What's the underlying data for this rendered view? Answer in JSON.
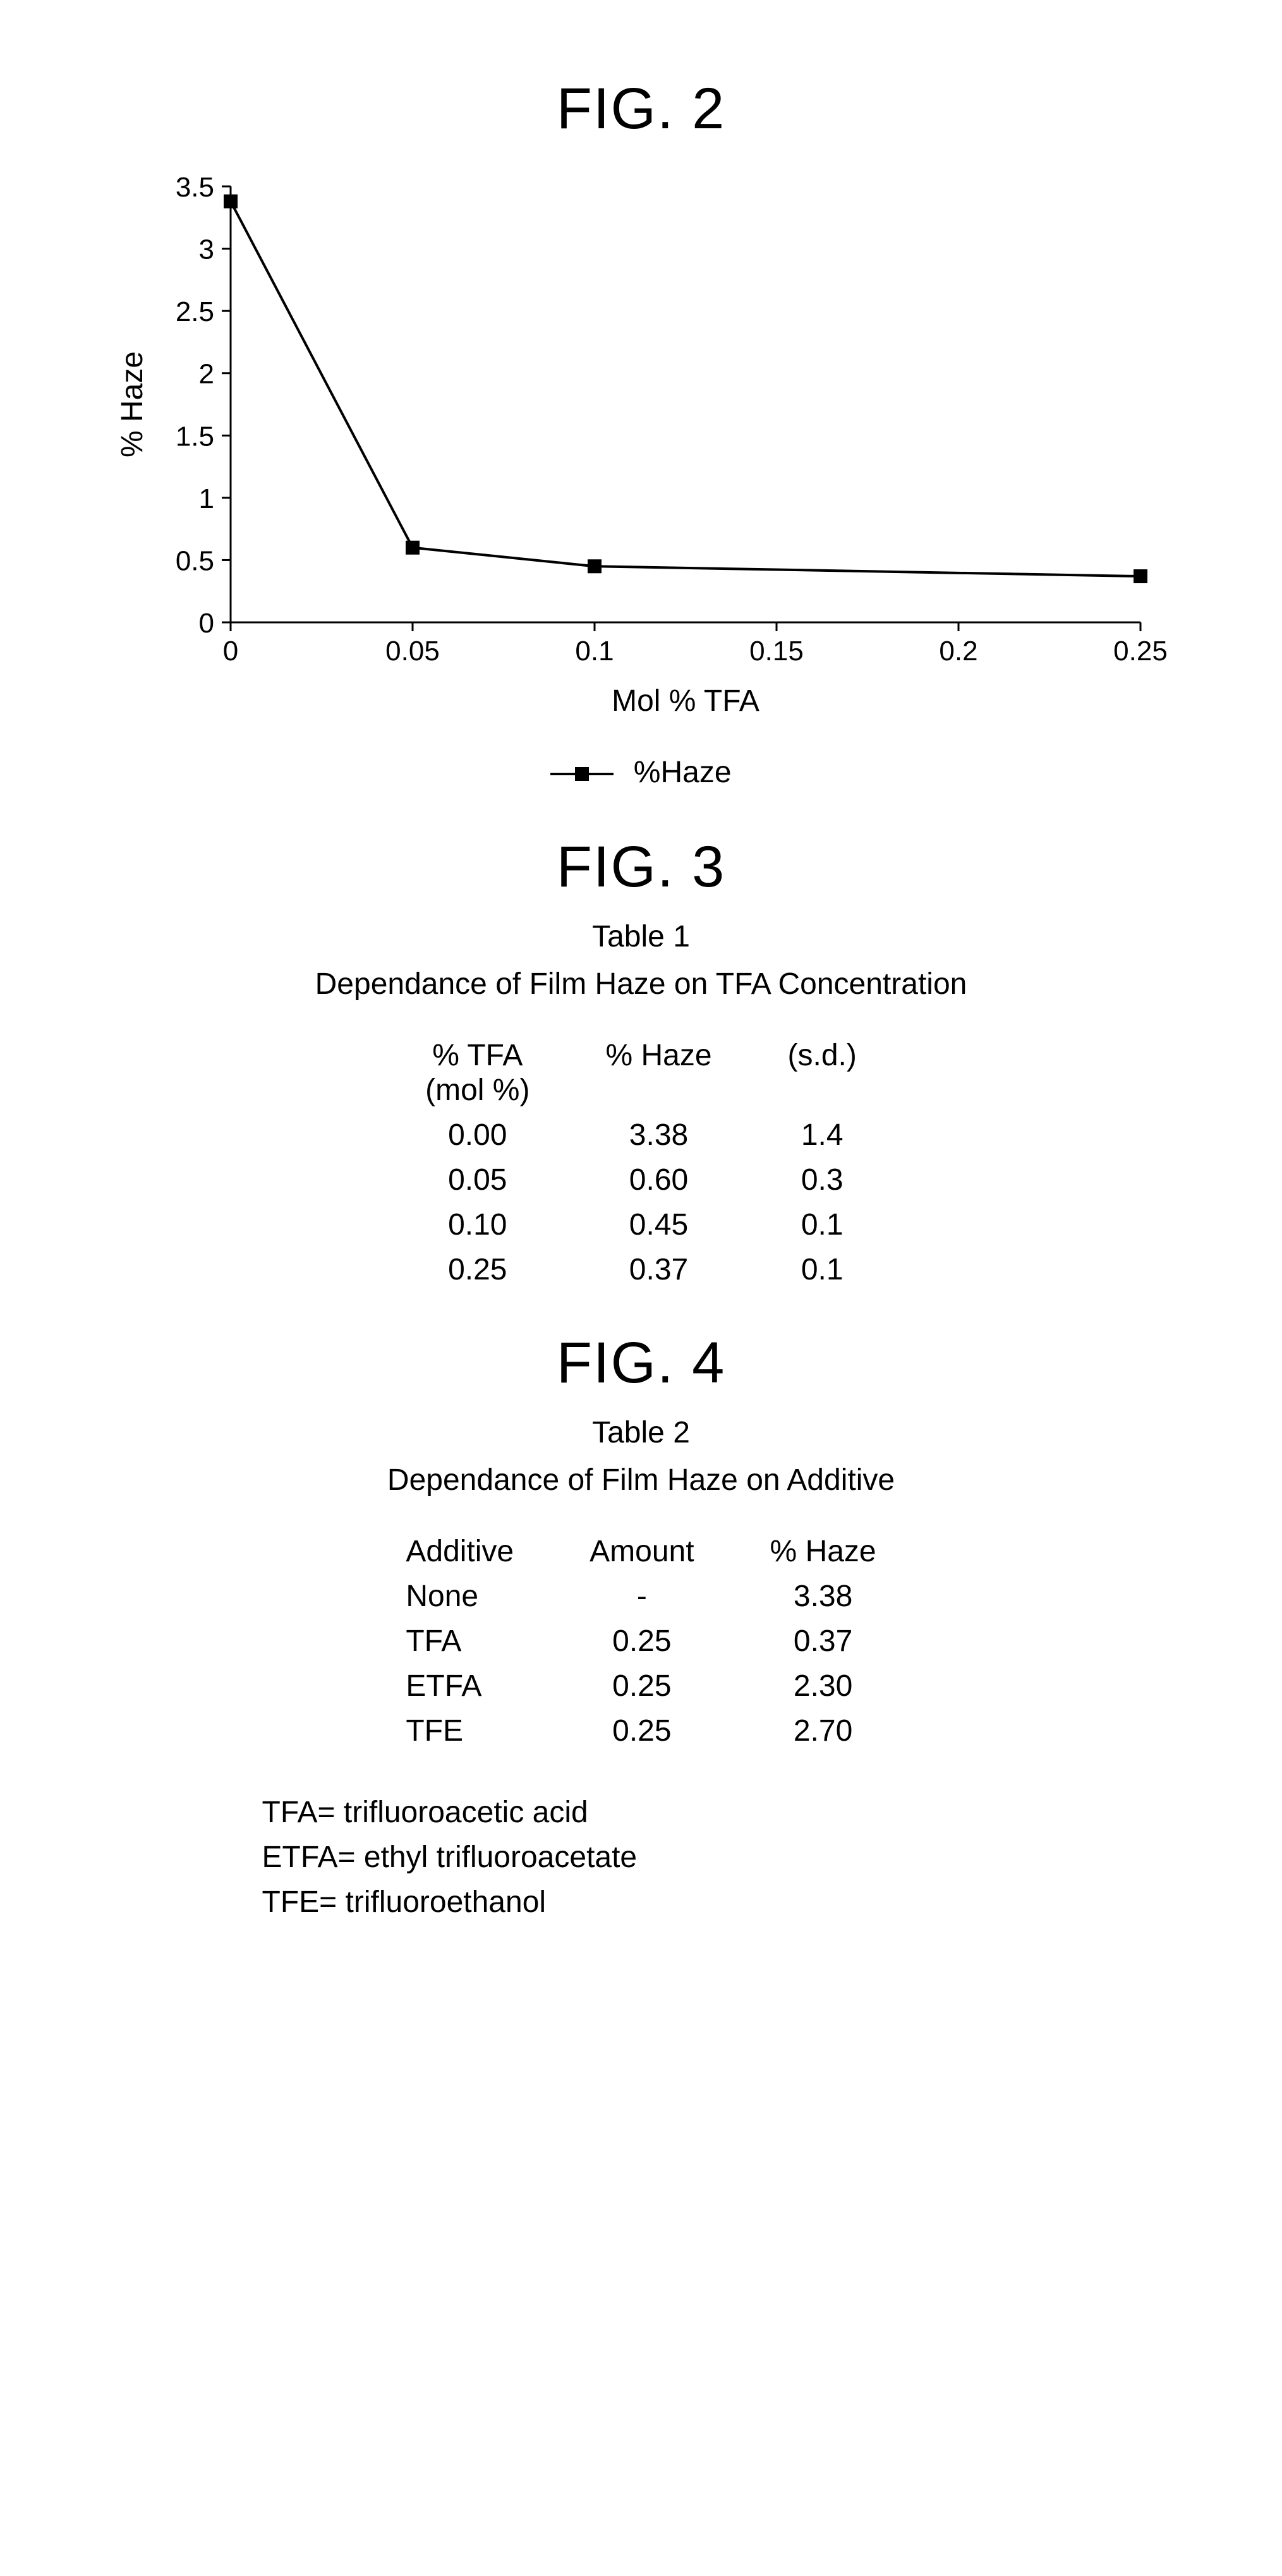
{
  "fig2": {
    "title": "FIG. 2",
    "chart": {
      "type": "line",
      "series_label": "%Haze",
      "xlabel": "Mol % TFA",
      "ylabel": "% Haze",
      "xlim": [
        0,
        0.25
      ],
      "ylim": [
        0,
        3.5
      ],
      "xtick_step": 0.05,
      "ytick_step": 0.5,
      "xticks": [
        "0",
        "0.05",
        "0.1",
        "0.15",
        "0.2",
        "0.25"
      ],
      "yticks": [
        "0",
        "0.5",
        "1",
        "1.5",
        "2",
        "2.5",
        "3",
        "3.5"
      ],
      "points": [
        {
          "x": 0.0,
          "y": 3.38
        },
        {
          "x": 0.05,
          "y": 0.6
        },
        {
          "x": 0.1,
          "y": 0.45
        },
        {
          "x": 0.25,
          "y": 0.37
        }
      ],
      "line_color": "#000000",
      "line_width": 4,
      "marker_style": "square",
      "marker_size": 22,
      "marker_color": "#000000",
      "background_color": "#ffffff",
      "axis_color": "#000000",
      "tick_fontsize": 44,
      "label_fontsize": 48
    }
  },
  "fig3": {
    "title": "FIG. 3",
    "table_title": "Table 1",
    "caption": "Dependance of Film Haze on TFA Concentration",
    "columns": [
      {
        "label": "% TFA",
        "sub": "(mol %)",
        "align": "center"
      },
      {
        "label": "% Haze",
        "sub": "",
        "align": "center"
      },
      {
        "label": "(s.d.)",
        "sub": "",
        "align": "center"
      }
    ],
    "rows": [
      [
        "0.00",
        "3.38",
        "1.4"
      ],
      [
        "0.05",
        "0.60",
        "0.3"
      ],
      [
        "0.10",
        "0.45",
        "0.1"
      ],
      [
        "0.25",
        "0.37",
        "0.1"
      ]
    ]
  },
  "fig4": {
    "title": "FIG. 4",
    "table_title": "Table 2",
    "caption": "Dependance of Film Haze on Additive",
    "columns": [
      {
        "label": "Additive",
        "sub": "",
        "align": "left"
      },
      {
        "label": "Amount",
        "sub": "",
        "align": "center"
      },
      {
        "label": "% Haze",
        "sub": "",
        "align": "center"
      }
    ],
    "rows": [
      [
        "None",
        "-",
        "3.38"
      ],
      [
        "TFA",
        "0.25",
        "0.37"
      ],
      [
        "ETFA",
        "0.25",
        "2.30"
      ],
      [
        "TFE",
        "0.25",
        "2.70"
      ]
    ],
    "definitions": [
      "TFA= trifluoroacetic acid",
      "ETFA= ethyl trifluoroacetate",
      "TFE= trifluoroethanol"
    ]
  }
}
